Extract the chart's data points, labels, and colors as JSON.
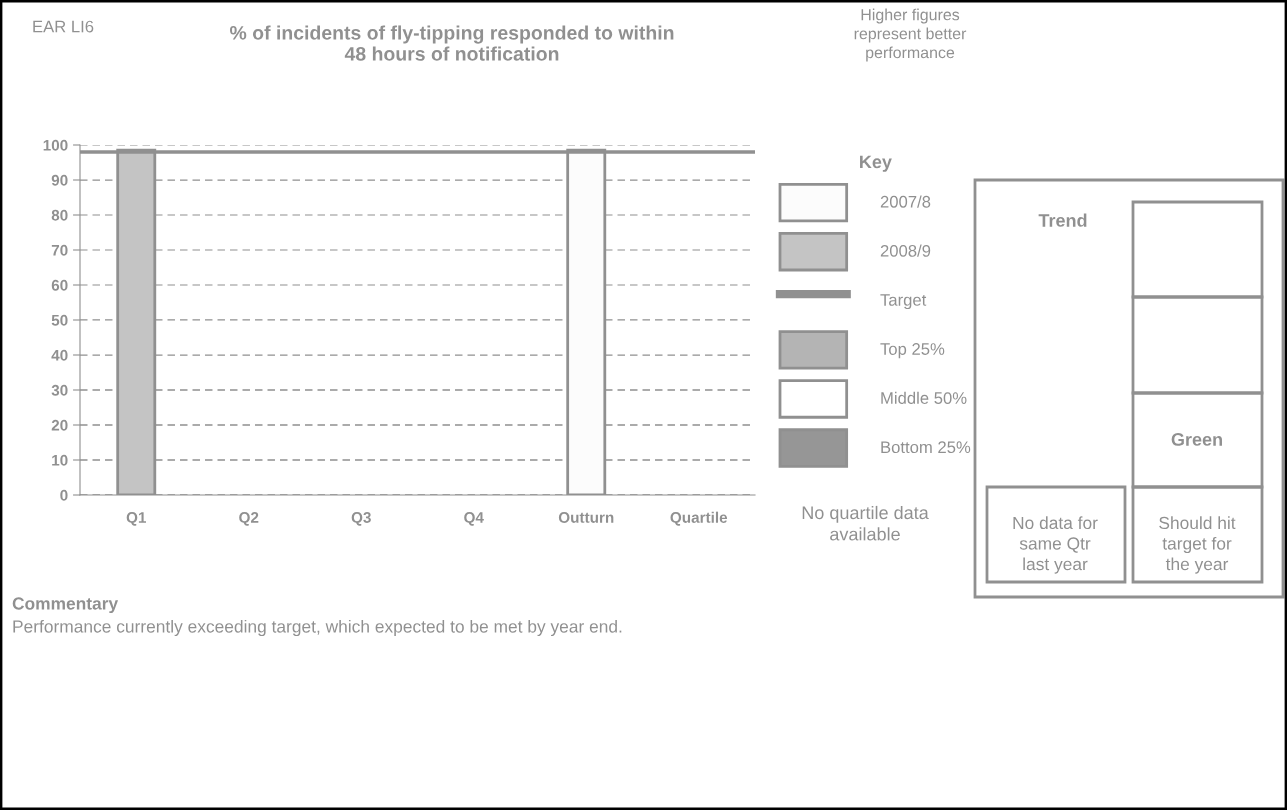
{
  "chart_data": {
    "type": "bar",
    "title": "% of incidents of fly-tipping responded to within\n48 hours of notification",
    "categories": [
      "Q1",
      "Q2",
      "Q3",
      "Q4",
      "Outturn",
      "Quartile"
    ],
    "series": [
      {
        "name": "2007/8",
        "color": "#fcfcfc",
        "values": [
          null,
          null,
          null,
          null,
          98.5,
          null
        ]
      },
      {
        "name": "2008/9",
        "color": "#c4c4c4",
        "values": [
          98.5,
          null,
          null,
          null,
          null,
          null
        ]
      },
      {
        "name": "Top 25%",
        "color": "#b4b4b4",
        "values": [
          null,
          null,
          null,
          null,
          null,
          null
        ]
      },
      {
        "name": "Middle 50%",
        "color": "#ffffff",
        "values": [
          null,
          null,
          null,
          null,
          null,
          null
        ]
      },
      {
        "name": "Bottom 25%",
        "color": "#969696",
        "values": [
          null,
          null,
          null,
          null,
          null,
          null
        ]
      }
    ],
    "ylim": [
      0,
      100
    ],
    "yticks": [
      0,
      10,
      20,
      30,
      40,
      50,
      60,
      70,
      80,
      90,
      100
    ],
    "grid": "y",
    "legend": "right",
    "legend_title": "Key",
    "ref_lines": [
      {
        "axis": "y",
        "value": 98,
        "label": "Target",
        "color": "#909090"
      }
    ],
    "annotations": [
      "EAR LI6",
      "Higher figures\nrepresent better\nperformance",
      "No quartile data\navailable",
      "Trend",
      "Green",
      "No data for\nsame Qtr\nlast year",
      "Should hit\ntarget for\nthe year",
      "Commentary",
      "Performance currently exceeding target, which expected to be met by year end."
    ]
  }
}
